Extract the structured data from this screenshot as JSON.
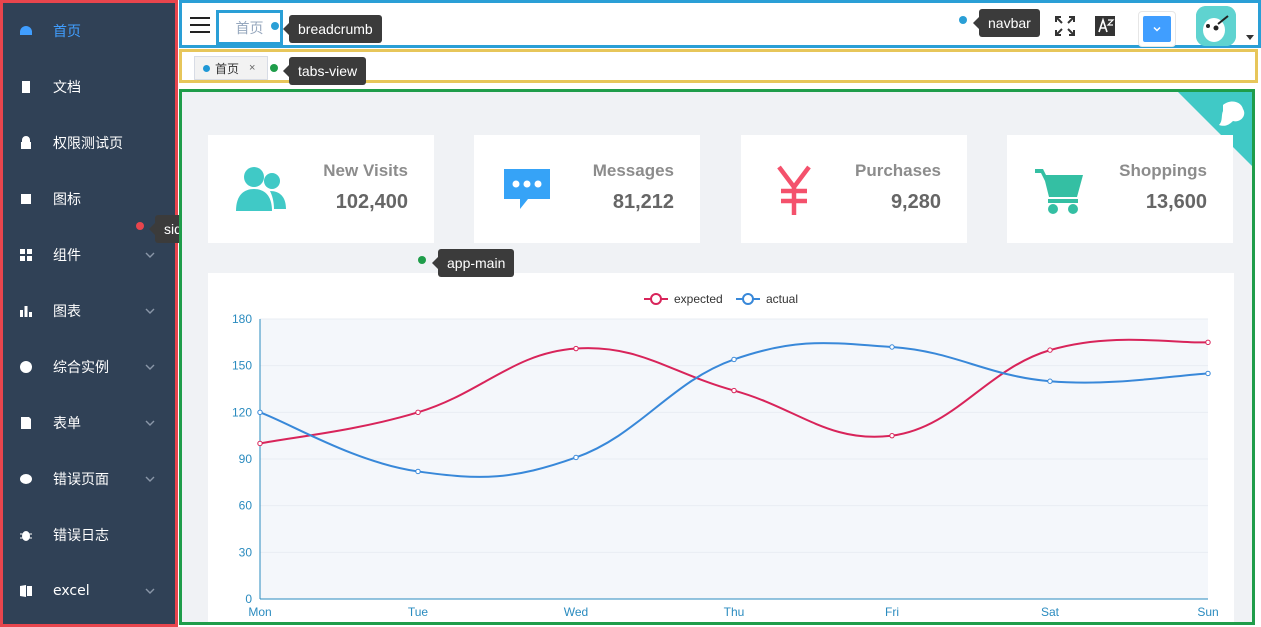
{
  "sidebar": {
    "items": [
      {
        "label": "首页",
        "icon": "dashboard-icon",
        "has_children": false,
        "active": true
      },
      {
        "label": "文档",
        "icon": "documentation-icon",
        "has_children": false
      },
      {
        "label": "权限测试页",
        "icon": "lock-icon",
        "has_children": false
      },
      {
        "label": "图标",
        "icon": "icon-icon",
        "has_children": false
      },
      {
        "label": "组件",
        "icon": "component-icon",
        "has_children": true
      },
      {
        "label": "图表",
        "icon": "chart-icon",
        "has_children": true
      },
      {
        "label": "综合实例",
        "icon": "example-icon",
        "has_children": true
      },
      {
        "label": "表单",
        "icon": "form-icon",
        "has_children": true
      },
      {
        "label": "错误页面",
        "icon": "404-icon",
        "has_children": true
      },
      {
        "label": "错误日志",
        "icon": "bug-icon",
        "has_children": false
      },
      {
        "label": "excel",
        "icon": "excel-icon",
        "has_children": true
      }
    ]
  },
  "navbar": {
    "breadcrumb": "首页"
  },
  "tabs_view": {
    "tabs": [
      {
        "label": "首页",
        "close": "×"
      }
    ]
  },
  "annotations": {
    "sidebar": "sidebar",
    "breadcrumb": "breadcrumb",
    "navbar": "navbar",
    "tabs_view": "tabs-view",
    "app_main": "app-main"
  },
  "colors": {
    "sidebar_bg": "#304156",
    "active": "#409eff",
    "expected_line": "#d8245a",
    "actual_line": "#3888d9",
    "visits_icon": "#40c9c6",
    "messages_icon": "#36a3f7",
    "purchases_icon": "#f4516c",
    "shoppings_icon": "#34bfa3"
  },
  "panels": [
    {
      "label": "New Visits",
      "value": "102,400",
      "icon": "peoples-icon"
    },
    {
      "label": "Messages",
      "value": "81,212",
      "icon": "message-icon"
    },
    {
      "label": "Purchases",
      "value": "9,280",
      "icon": "money-icon"
    },
    {
      "label": "Shoppings",
      "value": "13,600",
      "icon": "shopping-cart-icon"
    }
  ],
  "chart_data": {
    "type": "line",
    "categories": [
      "Mon",
      "Tue",
      "Wed",
      "Thu",
      "Fri",
      "Sat",
      "Sun"
    ],
    "series": [
      {
        "name": "expected",
        "values": [
          100,
          120,
          161,
          134,
          105,
          160,
          165
        ]
      },
      {
        "name": "actual",
        "values": [
          120,
          82,
          91,
          154,
          162,
          140,
          145
        ]
      }
    ],
    "ylim": [
      0,
      180
    ],
    "yticks": [
      0,
      30,
      60,
      90,
      120,
      150,
      180
    ],
    "legend": "top-center",
    "grid": true,
    "smooth": true,
    "xlabel": "",
    "ylabel": ""
  }
}
